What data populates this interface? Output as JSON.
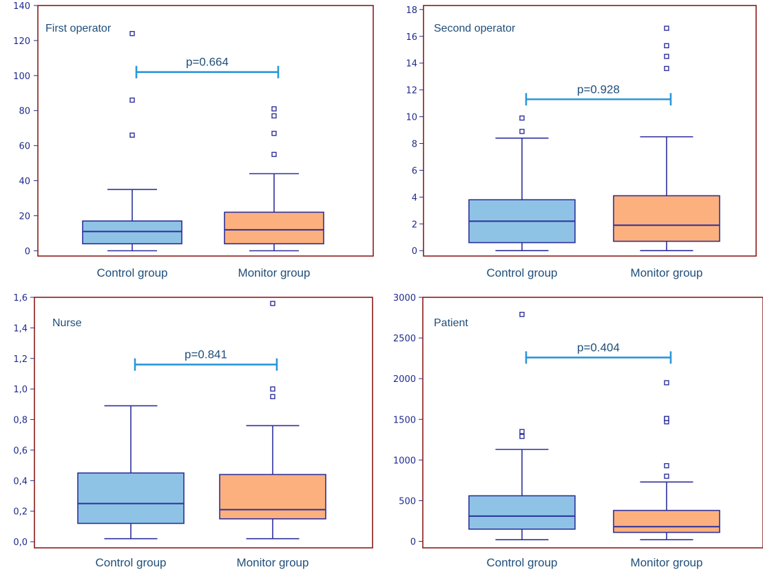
{
  "chart_data": [
    {
      "type": "box",
      "title": "First operator",
      "categories": [
        "Control group",
        "Monitor group"
      ],
      "ylim": [
        -3,
        140
      ],
      "yticks": [
        0,
        20,
        40,
        60,
        80,
        100,
        120,
        140
      ],
      "ytick_labels": [
        "0",
        "20",
        "40",
        "60",
        "80",
        "100",
        "120",
        "140"
      ],
      "boxes": [
        {
          "name": "Control group",
          "min": 0,
          "q1": 4,
          "median": 11,
          "q3": 17,
          "max": 35,
          "outliers": [
            66,
            86,
            124
          ]
        },
        {
          "name": "Monitor group",
          "min": 0,
          "q1": 4,
          "median": 12,
          "q3": 22,
          "max": 44,
          "outliers": [
            55,
            67,
            77,
            81
          ]
        }
      ],
      "annotation": "p=0.664",
      "annotation_y": 102
    },
    {
      "type": "box",
      "title": "Second operator",
      "categories": [
        "Control group",
        "Monitor group"
      ],
      "ylim": [
        -0.4,
        18.3
      ],
      "yticks": [
        0,
        2,
        4,
        6,
        8,
        10,
        12,
        14,
        16,
        18
      ],
      "ytick_labels": [
        "0",
        "2",
        "4",
        "6",
        "8",
        "10",
        "12",
        "14",
        "16",
        "18"
      ],
      "boxes": [
        {
          "name": "Control group",
          "min": 0,
          "q1": 0.6,
          "median": 2.2,
          "q3": 3.8,
          "max": 8.4,
          "outliers": [
            8.9,
            9.9
          ]
        },
        {
          "name": "Monitor group",
          "min": 0,
          "q1": 0.7,
          "median": 1.9,
          "q3": 4.1,
          "max": 8.5,
          "outliers": [
            13.6,
            14.5,
            15.3,
            16.6
          ]
        }
      ],
      "annotation": "p=0.928",
      "annotation_y": 11.3
    },
    {
      "type": "box",
      "title": "Nurse",
      "categories": [
        "Control group",
        "Monitor group"
      ],
      "ylim": [
        -0.04,
        1.6
      ],
      "yticks": [
        0,
        0.2,
        0.4,
        0.6,
        0.8,
        1.0,
        1.2,
        1.4,
        1.6
      ],
      "ytick_labels": [
        "0,0",
        "0,2",
        "0,4",
        "0,6",
        "0,8",
        "1,0",
        "1,2",
        "1,4",
        "1,6"
      ],
      "boxes": [
        {
          "name": "Control group",
          "min": 0.02,
          "q1": 0.12,
          "median": 0.25,
          "q3": 0.45,
          "max": 0.89,
          "outliers": []
        },
        {
          "name": "Monitor group",
          "min": 0.02,
          "q1": 0.15,
          "median": 0.21,
          "q3": 0.44,
          "max": 0.76,
          "outliers": [
            0.95,
            1.0,
            1.56
          ]
        }
      ],
      "annotation": "p=0.841",
      "annotation_y": 1.16
    },
    {
      "type": "box",
      "title": "Patient",
      "categories": [
        "Control group",
        "Monitor group"
      ],
      "ylim": [
        -80,
        3000
      ],
      "yticks": [
        0,
        500,
        1000,
        1500,
        2000,
        2500,
        3000
      ],
      "ytick_labels": [
        "0",
        "500",
        "1000",
        "1500",
        "2000",
        "2500",
        "3000"
      ],
      "boxes": [
        {
          "name": "Control group",
          "min": 20,
          "q1": 150,
          "median": 310,
          "q3": 560,
          "max": 1130,
          "outliers": [
            1290,
            1350,
            2790
          ]
        },
        {
          "name": "Monitor group",
          "min": 20,
          "q1": 110,
          "median": 180,
          "q3": 380,
          "max": 730,
          "outliers": [
            800,
            930,
            1470,
            1510,
            1510,
            1950
          ]
        }
      ],
      "annotation": "p=0.404",
      "annotation_y": 2260
    }
  ],
  "colors": {
    "frame": "#8b1a1a",
    "axis_text": "#1f2a8c",
    "box_stroke": "#2c2f9b",
    "control_fill": "#8ec3e6",
    "monitor_fill": "#fbb07e",
    "annotation_line": "#2a96d9",
    "outlier": "#2c2f9b",
    "label_text": "#1f4e79"
  }
}
